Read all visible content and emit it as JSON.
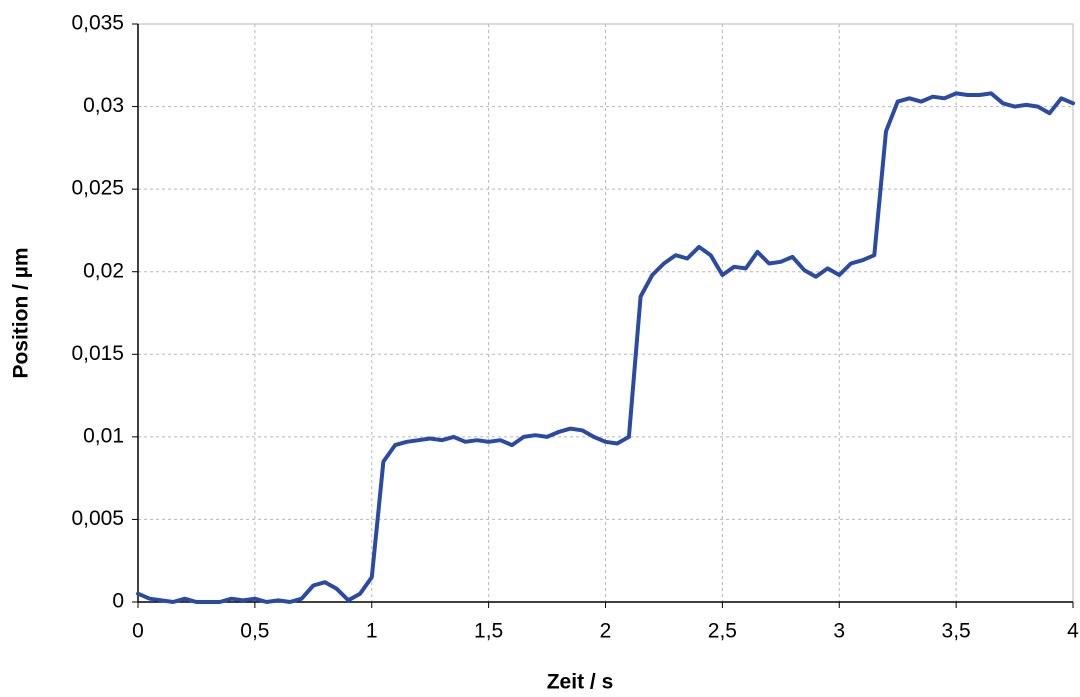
{
  "chart_data": {
    "type": "line",
    "x_label": "Zeit / s",
    "y_label": "Position / µm",
    "x": [
      0,
      0.05,
      0.1,
      0.15,
      0.2,
      0.25,
      0.3,
      0.35,
      0.4,
      0.45,
      0.5,
      0.55,
      0.6,
      0.65,
      0.7,
      0.75,
      0.8,
      0.85,
      0.9,
      0.95,
      1,
      1.05,
      1.1,
      1.15,
      1.2,
      1.25,
      1.3,
      1.35,
      1.4,
      1.45,
      1.5,
      1.55,
      1.6,
      1.65,
      1.7,
      1.75,
      1.8,
      1.85,
      1.9,
      1.95,
      2,
      2.05,
      2.1,
      2.15,
      2.2,
      2.25,
      2.3,
      2.35,
      2.4,
      2.45,
      2.5,
      2.55,
      2.6,
      2.65,
      2.7,
      2.75,
      2.8,
      2.85,
      2.9,
      2.95,
      3,
      3.05,
      3.1,
      3.15,
      3.2,
      3.25,
      3.3,
      3.35,
      3.4,
      3.45,
      3.5,
      3.55,
      3.6,
      3.65,
      3.7,
      3.75,
      3.8,
      3.85,
      3.9,
      3.95,
      4
    ],
    "series": [
      {
        "color": "#2b4aa6",
        "values": [
          0.0005,
          0.0002,
          0.0001,
          0,
          0.0002,
          0,
          0,
          0,
          0.0002,
          0.0001,
          0.0002,
          0,
          0.0001,
          0,
          0.0002,
          0.001,
          0.0012,
          0.0008,
          0.0001,
          0.0005,
          0.0015,
          0.0085,
          0.0095,
          0.0097,
          0.0098,
          0.0099,
          0.0098,
          0.01,
          0.0097,
          0.0098,
          0.0097,
          0.0098,
          0.0095,
          0.01,
          0.0101,
          0.01,
          0.0103,
          0.0105,
          0.0104,
          0.01,
          0.0097,
          0.0096,
          0.01,
          0.0185,
          0.0198,
          0.0205,
          0.021,
          0.0208,
          0.0215,
          0.021,
          0.0198,
          0.0203,
          0.0202,
          0.0212,
          0.0205,
          0.0206,
          0.0209,
          0.0201,
          0.0197,
          0.0202,
          0.0198,
          0.0205,
          0.0207,
          0.021,
          0.0285,
          0.0303,
          0.0305,
          0.0303,
          0.0306,
          0.0305,
          0.0308,
          0.0307,
          0.0307,
          0.0308,
          0.0302,
          0.03,
          0.0301,
          0.03,
          0.0296,
          0.0305,
          0.0302
        ]
      }
    ],
    "xlim": [
      0,
      4
    ],
    "xticks": [
      0,
      {
        "value": 0.5,
        "label": "0,5"
      },
      1,
      {
        "value": 1.5,
        "label": "1,5"
      },
      2,
      {
        "value": 2.5,
        "label": "2,5"
      },
      3,
      {
        "value": 3.5,
        "label": "3,5"
      },
      4
    ],
    "ylim": [
      0,
      0.035
    ],
    "yticks": [
      0,
      {
        "value": 0.005,
        "label": "0,005"
      },
      {
        "value": 0.01,
        "label": "0,01"
      },
      {
        "value": 0.015,
        "label": "0,015"
      },
      {
        "value": 0.02,
        "label": "0,02"
      },
      {
        "value": 0.025,
        "label": "0,025"
      },
      {
        "value": 0.03,
        "label": "0,03"
      },
      {
        "value": 0.035,
        "label": "0,035"
      }
    ],
    "grid": true
  }
}
